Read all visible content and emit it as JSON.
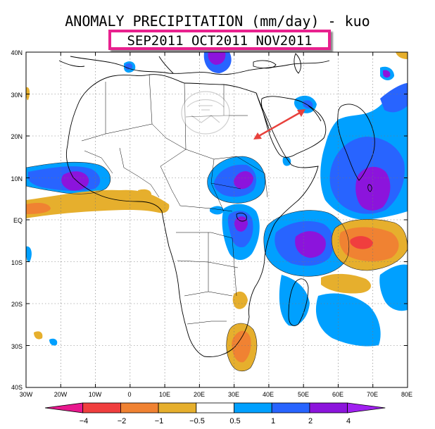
{
  "title": "ANOMALY PRECIPITATION (mm/day) - kuo",
  "period": "SEP2011 OCT2011 NOV2011",
  "map": {
    "region": "Africa",
    "lat_labels": [
      "40N",
      "30N",
      "20N",
      "10N",
      "EQ",
      "10S",
      "20S",
      "30S",
      "40S"
    ],
    "lon_labels": [
      "30W",
      "20W",
      "10W",
      "0",
      "10E",
      "20E",
      "30E",
      "40E",
      "50E",
      "60E",
      "70E",
      "80E"
    ],
    "lat_range": [
      -40,
      40
    ],
    "lon_range": [
      -30,
      80
    ],
    "grid": "dotted",
    "watermark": "logo"
  },
  "colorbar": {
    "labels": [
      "−4",
      "−2",
      "−1",
      "−0.5",
      "0.5",
      "1",
      "2",
      "4"
    ],
    "colors": [
      "#e8188e",
      "#f03e3e",
      "#f08232",
      "#e6af2d",
      "#ffffff",
      "#00a0ff",
      "#2864ff",
      "#8c14dc",
      "#a020f0"
    ]
  },
  "annotation": {
    "arrow_color": "#e8413c"
  }
}
